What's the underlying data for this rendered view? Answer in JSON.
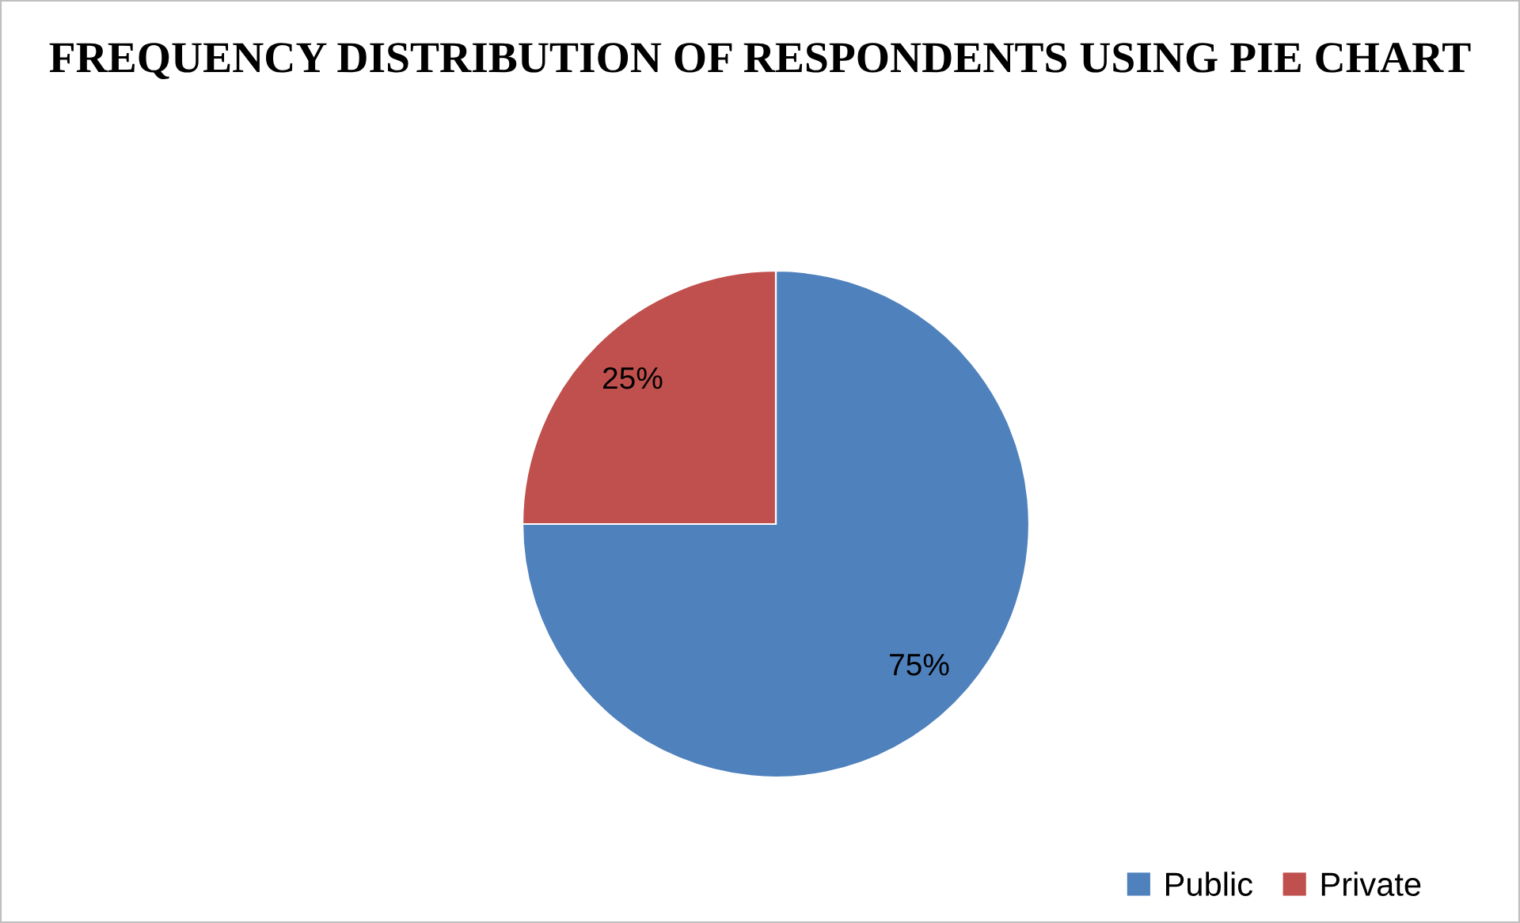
{
  "chart_data": {
    "type": "pie",
    "title": "FREQUENCY DISTRIBUTION OF RESPONDENTS USING PIE CHART",
    "categories": [
      "Public",
      "Private"
    ],
    "values": [
      75,
      25
    ],
    "colors": [
      "#4f81bd",
      "#c0504d"
    ],
    "value_labels": [
      "75%",
      "25%"
    ],
    "legend": "bottom right"
  }
}
